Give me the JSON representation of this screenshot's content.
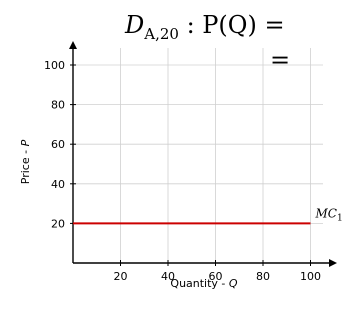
{
  "chart_data": {
    "type": "line",
    "title": {
      "main": "D",
      "sub": "A,20",
      "rest": " : P(Q) =",
      "second_line": "="
    },
    "xlabel": {
      "text": "Quantity - ",
      "var": "Q"
    },
    "ylabel": {
      "text": "Price - ",
      "var": "P"
    },
    "xlim": [
      0,
      110
    ],
    "ylim": [
      0,
      110
    ],
    "grid": true,
    "x_ticks": [
      20,
      40,
      60,
      80,
      100
    ],
    "y_ticks": [
      20,
      40,
      60,
      80,
      100
    ],
    "series": [
      {
        "name": "MC",
        "name_sub": "1",
        "color": "#cc0000",
        "x": [
          0,
          100
        ],
        "y": [
          20,
          20
        ]
      }
    ]
  }
}
